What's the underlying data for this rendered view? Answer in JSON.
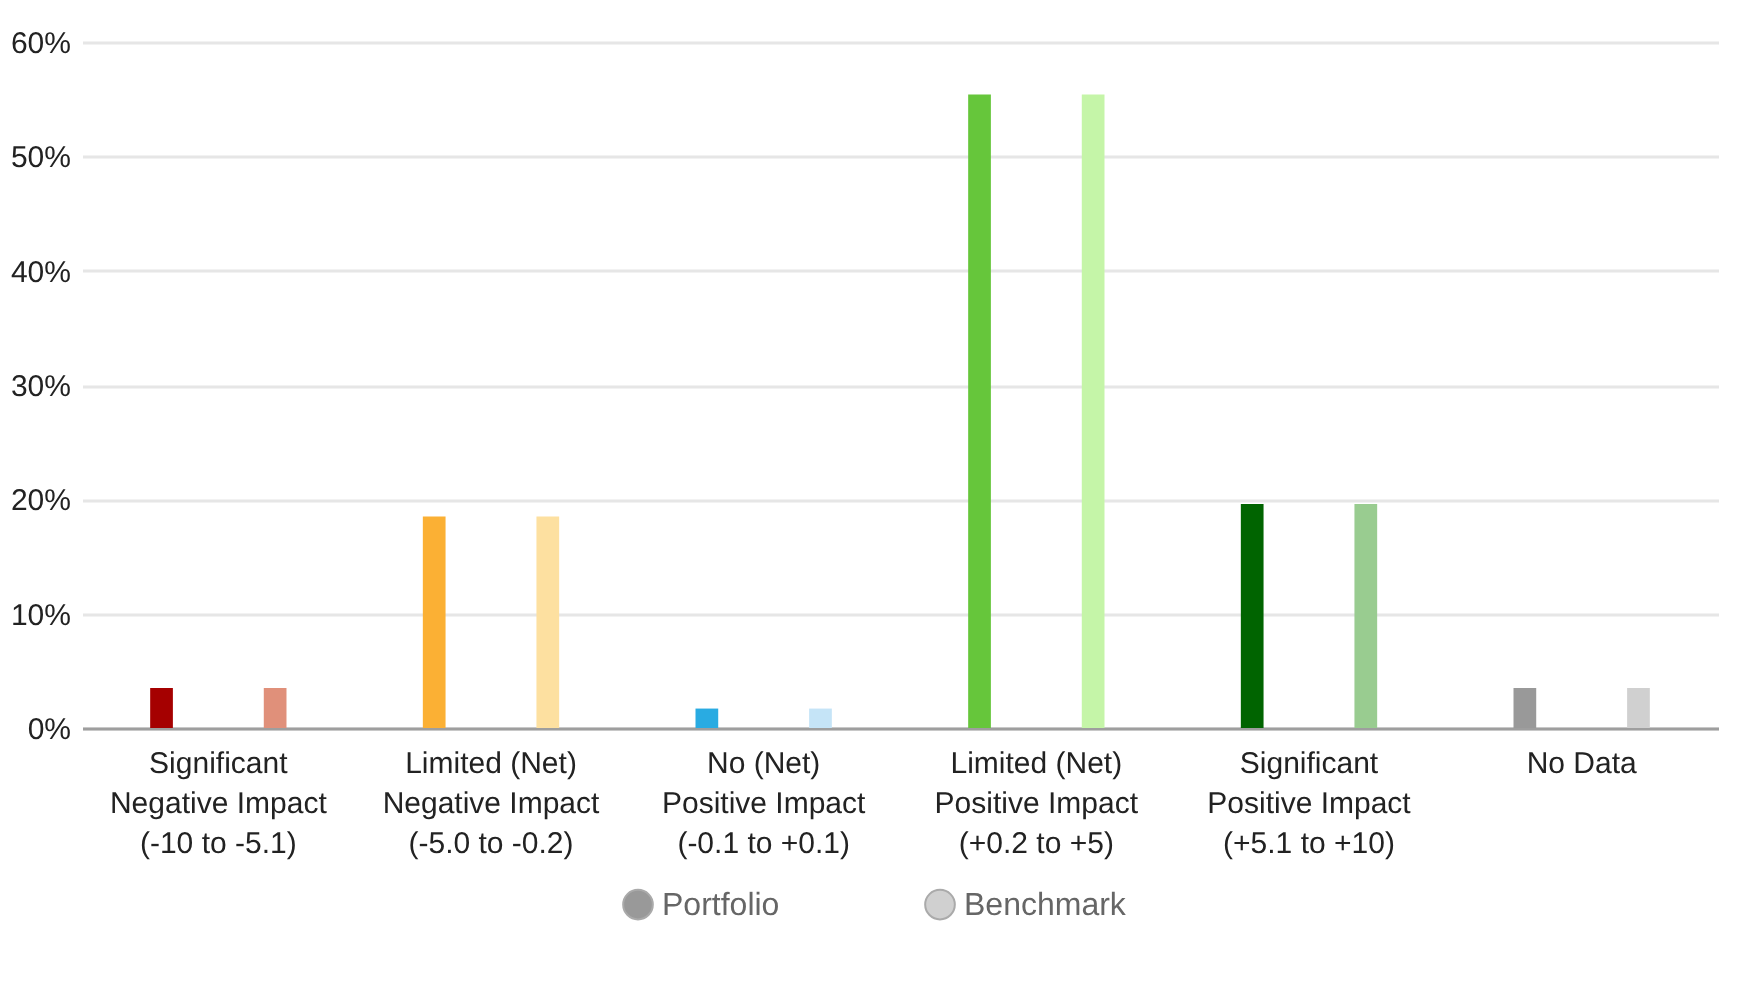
{
  "chart_data": {
    "type": "bar",
    "categories": [
      "Significant\nNegative Impact\n(-10 to -5.1)",
      "Limited (Net)\nNegative Impact\n(-5.0 to -0.2)",
      "No (Net)\nPositive Impact\n(-0.1 to +0.1)",
      "Limited (Net)\nPositive Impact\n(+0.2 to +5)",
      "Significant\nPositive Impact\n(+5.1 to +10)",
      "No Data"
    ],
    "series": [
      {
        "name": "Portfolio",
        "color": "#999999",
        "colors": [
          "#a50000",
          "#fbb034",
          "#29abe2",
          "#66c63b",
          "#006400",
          "#999999"
        ],
        "values": [
          3.5,
          18.5,
          1.7,
          55.4,
          19.6,
          3.5
        ]
      },
      {
        "name": "Benchmark",
        "color": "#d0d0d0",
        "colors": [
          "#e0907a",
          "#fde0a0",
          "#c5e4f7",
          "#c5f5a8",
          "#99cc90",
          "#d0d0d0"
        ],
        "values": [
          3.5,
          18.5,
          1.7,
          55.4,
          19.6,
          3.5
        ]
      }
    ],
    "ylim": [
      0,
      60
    ],
    "yticks": [
      {
        "value": 0,
        "label": "0%"
      },
      {
        "value": 10,
        "label": "10%"
      },
      {
        "value": 20,
        "label": "20%"
      },
      {
        "value": 30,
        "label": "30%"
      },
      {
        "value": 40,
        "label": "40%"
      },
      {
        "value": 50,
        "label": "50%"
      },
      {
        "value": 60,
        "label": "60%"
      }
    ],
    "grid": "y",
    "legend": "bottom"
  }
}
